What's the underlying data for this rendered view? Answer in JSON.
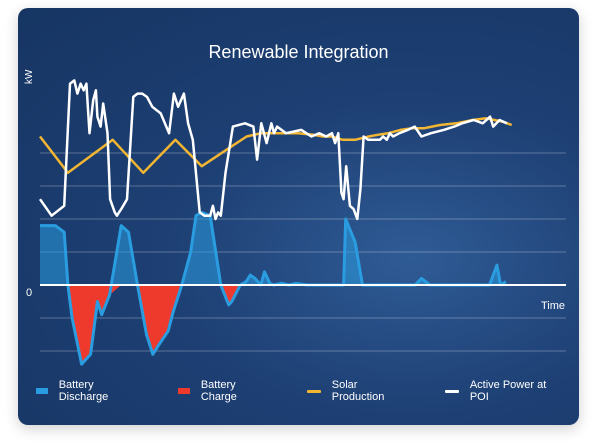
{
  "chart_data": {
    "type": "line",
    "title": "Renewable Integration",
    "ylabel": "kW",
    "xlabel": "Time",
    "zero_label": "0",
    "x_range": [
      0,
      100
    ],
    "y_range": [
      -3,
      7
    ],
    "grid": true,
    "gridlines_y": [
      -2,
      -1,
      0,
      1,
      2,
      3,
      4
    ],
    "legend_position": "bottom",
    "colors": {
      "discharge": "#2a9de0",
      "charge": "#ee3a2c",
      "solar": "#f2b632",
      "poi": "#ffffff"
    },
    "series": [
      {
        "name": "Battery Discharge",
        "key": "battery",
        "x": [
          0,
          2.9,
          4.6,
          5.3,
          6.1,
          7.9,
          9.6,
          10.9,
          11.7,
          13.2,
          15.4,
          16.8,
          18.5,
          20.2,
          21.4,
          22.6,
          24.3,
          25.3,
          26.9,
          28.6,
          29.6,
          30.6,
          32.3,
          34.3,
          35.8,
          36.4,
          38.0,
          39.1,
          39.9,
          40.8,
          41.9,
          42.6,
          43.6,
          44.3,
          45.8,
          47.3,
          48.5,
          50.7,
          51.7,
          57.6,
          58.0,
          58.5,
          59.8,
          61.2,
          61.6,
          62.5,
          63.6,
          71.2,
          72.4,
          74.0,
          85.3,
          86.7,
          87.4,
          88.4
        ],
        "y": [
          1.8,
          1.8,
          1.6,
          0,
          -1.0,
          -2.4,
          -2.1,
          -0.5,
          -0.9,
          -0.3,
          1.8,
          1.6,
          0,
          -1.5,
          -2.1,
          -1.8,
          -1.4,
          -0.8,
          0,
          1.0,
          2.1,
          2.2,
          2.1,
          0,
          -0.6,
          -0.5,
          0,
          0.1,
          0.3,
          0.2,
          0,
          0.4,
          0.05,
          0,
          0.05,
          0,
          0.05,
          0,
          0,
          0,
          2.0,
          1.8,
          1.3,
          0,
          0,
          0,
          0,
          0,
          0.2,
          0,
          0,
          0.6,
          0,
          0.1
        ]
      },
      {
        "name": "Battery Charge",
        "key": "battery_negative_fill"
      },
      {
        "name": "Solar Production",
        "key": "solar",
        "x": [
          0,
          5.3,
          13.8,
          19.6,
          25.7,
          30.7,
          35.4,
          39.2,
          41.9,
          44.3,
          46.1,
          49.0,
          51.9,
          53.7,
          55.5,
          57.4,
          59.8,
          62.4,
          64.1,
          66.1,
          68.4,
          70.5,
          72.8,
          75.9,
          79.0,
          82.1,
          84.6,
          86.2,
          87.8,
          89.5
        ],
        "y": [
          4.5,
          3.4,
          4.4,
          3.4,
          4.4,
          3.6,
          4.1,
          4.5,
          4.6,
          4.6,
          4.6,
          4.6,
          4.55,
          4.5,
          4.5,
          4.4,
          4.4,
          4.5,
          4.55,
          4.6,
          4.7,
          4.75,
          4.75,
          4.85,
          4.9,
          5.0,
          5.05,
          5.0,
          4.95,
          4.85
        ]
      },
      {
        "name": "Active Power at POI",
        "key": "poi",
        "x": [
          0,
          2.2,
          4.6,
          5.7,
          6.5,
          7.1,
          7.7,
          8.3,
          8.8,
          9.4,
          10.1,
          10.6,
          10.9,
          11.5,
          12.0,
          12.8,
          13.3,
          14.2,
          14.6,
          15.4,
          16.5,
          17.7,
          18.5,
          19.4,
          20.3,
          21.3,
          22.9,
          24.5,
          25.4,
          26.2,
          27.3,
          28.1,
          29.0,
          30.3,
          31.2,
          32.3,
          32.8,
          33.3,
          33.8,
          34.3,
          35.2,
          36.6,
          38.9,
          40.5,
          41.2,
          42.0,
          43.0,
          43.9,
          44.4,
          45.0,
          46.7,
          49.6,
          51.5,
          53.0,
          54.3,
          55.4,
          56.0,
          56.6,
          57.2,
          57.6,
          58.1,
          58.8,
          59.5,
          60.2,
          60.8,
          61.4,
          62.3,
          63.5,
          64.5,
          65.1,
          65.8,
          66.4,
          67.0,
          68.2,
          69.8,
          71.1,
          72.4,
          74.2,
          76.6,
          78.6,
          80.1,
          82.3,
          84.0,
          85.4,
          86.0,
          87.2,
          88.6
        ],
        "y": [
          2.6,
          2.1,
          2.4,
          6.1,
          6.2,
          5.8,
          6.1,
          5.9,
          6.1,
          4.6,
          5.6,
          5.9,
          5.1,
          4.8,
          5.5,
          4.6,
          2.6,
          2.2,
          2.1,
          2.3,
          2.6,
          5.7,
          5.8,
          5.8,
          5.7,
          5.4,
          5.2,
          4.6,
          5.8,
          5.4,
          5.8,
          4.9,
          4.4,
          2.2,
          2.1,
          2.1,
          2.4,
          2.0,
          2.2,
          2.1,
          3.4,
          4.8,
          4.9,
          4.8,
          3.8,
          4.9,
          4.3,
          4.9,
          4.6,
          4.8,
          4.6,
          4.7,
          4.5,
          4.6,
          4.5,
          4.6,
          4.3,
          4.6,
          2.8,
          2.6,
          3.6,
          2.4,
          2.3,
          2.0,
          2.9,
          4.5,
          4.4,
          4.4,
          4.4,
          4.5,
          4.4,
          4.6,
          4.5,
          4.6,
          4.7,
          4.8,
          4.5,
          4.6,
          4.7,
          4.8,
          4.9,
          5.0,
          4.9,
          5.1,
          4.8,
          5.0,
          4.9
        ]
      }
    ]
  },
  "legend": [
    {
      "label": "Battery Discharge",
      "color": "#2a9de0",
      "shape": "rect"
    },
    {
      "label": "Battery Charge",
      "color": "#ee3a2c",
      "shape": "rect"
    },
    {
      "label": "Solar Production",
      "color": "#f2b632",
      "shape": "line"
    },
    {
      "label": "Active Power at POI",
      "color": "#ffffff",
      "shape": "line"
    }
  ]
}
